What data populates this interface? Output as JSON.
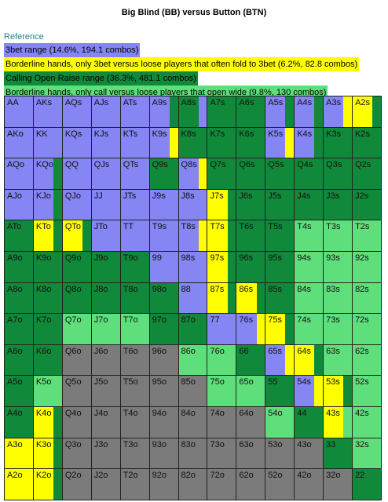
{
  "title": "Big Blind (BB) versus Button (BTN)",
  "reference": {
    "heading": "Reference",
    "items": [
      {
        "text": "3bet range (14.6%, 194.1 combos)",
        "fill": "P"
      },
      {
        "text": "Borderline hands, only 3bet versus loose players that often fold to 3bet (6.2%, 82.8 combos)",
        "fill": "Y"
      },
      {
        "text": "Calling Open Raise range (36.3%, 481.1 combos)",
        "fill": "G"
      },
      {
        "text": "Borderline hands, only call versus loose players that open wide (9.8%, 130 combos)",
        "fill": "L"
      }
    ]
  },
  "palette": {
    "P": "#8585f3",
    "Y": "#ffff00",
    "G": "#10893a",
    "L": "#5fdf7b",
    "X": "#7b7b7b"
  },
  "grid": {
    "rows": [
      [
        [
          "AA",
          "P"
        ],
        [
          "AKs",
          "P"
        ],
        [
          "AQs",
          "P"
        ],
        [
          "AJs",
          "P"
        ],
        [
          "ATs",
          "P"
        ],
        [
          "A9s",
          "P",
          "G"
        ],
        [
          "A8s",
          "G",
          "P"
        ],
        [
          "A7s",
          "G"
        ],
        [
          "A6s",
          "G"
        ],
        [
          "A5s",
          "P",
          "G"
        ],
        [
          "A4s",
          "P",
          "G"
        ],
        [
          "A3s",
          "P",
          "Y"
        ],
        [
          "A2s",
          "Y",
          "G"
        ]
      ],
      [
        [
          "AKo",
          "P"
        ],
        [
          "KK",
          "P"
        ],
        [
          "KQs",
          "P"
        ],
        [
          "KJs",
          "P"
        ],
        [
          "KTs",
          "P"
        ],
        [
          "K9s",
          "P",
          "Y"
        ],
        [
          "K8s",
          "G"
        ],
        [
          "K7s",
          "G"
        ],
        [
          "K6s",
          "G"
        ],
        [
          "K5s",
          "P",
          "Y"
        ],
        [
          "K4s",
          "P",
          "G"
        ],
        [
          "K3s",
          "G"
        ],
        [
          "K2s",
          "G"
        ]
      ],
      [
        [
          "AQo",
          "P"
        ],
        [
          "KQo",
          "P",
          "G"
        ],
        [
          "QQ",
          "P"
        ],
        [
          "QJs",
          "P"
        ],
        [
          "QTs",
          "P"
        ],
        [
          "Q9s",
          "G"
        ],
        [
          "Q8s",
          "P",
          "Y"
        ],
        [
          "Q7s",
          "G"
        ],
        [
          "Q6s",
          "G"
        ],
        [
          "Q5s",
          "G"
        ],
        [
          "Q4s",
          "G"
        ],
        [
          "Q3s",
          "G"
        ],
        [
          "Q2s",
          "G"
        ]
      ],
      [
        [
          "AJo",
          "P"
        ],
        [
          "KJo",
          "P",
          "G"
        ],
        [
          "QJo",
          "P"
        ],
        [
          "JJ",
          "P"
        ],
        [
          "JTs",
          "P"
        ],
        [
          "J9s",
          "P"
        ],
        [
          "J8s",
          "P"
        ],
        [
          "J7s",
          "Y",
          "G"
        ],
        [
          "J6s",
          "G"
        ],
        [
          "J5s",
          "G"
        ],
        [
          "J4s",
          "G"
        ],
        [
          "J3s",
          "G"
        ],
        [
          "J2s",
          "G"
        ]
      ],
      [
        [
          "ATo",
          "G"
        ],
        [
          "KTo",
          "Y",
          "G"
        ],
        [
          "QTo",
          "Y",
          "G"
        ],
        [
          "JTo",
          "P"
        ],
        [
          "TT",
          "P"
        ],
        [
          "T9s",
          "P"
        ],
        [
          "T8s",
          "P",
          "Y"
        ],
        [
          "T7s",
          "Y",
          "G"
        ],
        [
          "T6s",
          "G"
        ],
        [
          "T5s",
          "G"
        ],
        [
          "T4s",
          "L"
        ],
        [
          "T3s",
          "L"
        ],
        [
          "T2s",
          "L"
        ]
      ],
      [
        [
          "A9o",
          "G"
        ],
        [
          "K9o",
          "G"
        ],
        [
          "Q9o",
          "G"
        ],
        [
          "J9o",
          "G"
        ],
        [
          "T9o",
          "G"
        ],
        [
          "99",
          "P"
        ],
        [
          "98s",
          "P"
        ],
        [
          "97s",
          "Y",
          "G"
        ],
        [
          "96s",
          "G"
        ],
        [
          "95s",
          "G"
        ],
        [
          "94s",
          "L"
        ],
        [
          "93s",
          "L"
        ],
        [
          "92s",
          "L"
        ]
      ],
      [
        [
          "A8o",
          "G"
        ],
        [
          "K8o",
          "G"
        ],
        [
          "Q8o",
          "G"
        ],
        [
          "J8o",
          "G"
        ],
        [
          "T8o",
          "G"
        ],
        [
          "98o",
          "G"
        ],
        [
          "88",
          "P"
        ],
        [
          "87s",
          "Y",
          "G"
        ],
        [
          "86s",
          "Y",
          "G"
        ],
        [
          "85s",
          "G"
        ],
        [
          "84s",
          "L"
        ],
        [
          "83s",
          "L"
        ],
        [
          "82s",
          "L"
        ]
      ],
      [
        [
          "A7o",
          "G"
        ],
        [
          "K7o",
          "G"
        ],
        [
          "Q7o",
          "L"
        ],
        [
          "J7o",
          "L"
        ],
        [
          "T7o",
          "L"
        ],
        [
          "97o",
          "G"
        ],
        [
          "87o",
          "G"
        ],
        [
          "77",
          "P"
        ],
        [
          "76s",
          "P",
          "Y"
        ],
        [
          "75s",
          "Y",
          "G"
        ],
        [
          "74s",
          "L"
        ],
        [
          "73s",
          "L"
        ],
        [
          "72s",
          "L"
        ]
      ],
      [
        [
          "A6o",
          "G"
        ],
        [
          "K6o",
          "G"
        ],
        [
          "Q6o",
          "X"
        ],
        [
          "J6o",
          "X"
        ],
        [
          "T6o",
          "X"
        ],
        [
          "96o",
          "X"
        ],
        [
          "86o",
          "L"
        ],
        [
          "76o",
          "L"
        ],
        [
          "66",
          "G"
        ],
        [
          "65s",
          "P",
          "Y"
        ],
        [
          "64s",
          "Y",
          "G"
        ],
        [
          "63s",
          "L"
        ],
        [
          "62s",
          "L"
        ]
      ],
      [
        [
          "A5o",
          "G"
        ],
        [
          "K5o",
          "L"
        ],
        [
          "Q5o",
          "X"
        ],
        [
          "J5o",
          "X"
        ],
        [
          "T5o",
          "X"
        ],
        [
          "95o",
          "X"
        ],
        [
          "85o",
          "X"
        ],
        [
          "75o",
          "L"
        ],
        [
          "65o",
          "L"
        ],
        [
          "55",
          "G"
        ],
        [
          "54s",
          "P",
          "Y"
        ],
        [
          "53s",
          "Y",
          "G"
        ],
        [
          "52s",
          "L"
        ]
      ],
      [
        [
          "A4o",
          "G"
        ],
        [
          "K4o",
          "Y",
          "G"
        ],
        [
          "Q4o",
          "X"
        ],
        [
          "J4o",
          "X"
        ],
        [
          "T4o",
          "X"
        ],
        [
          "94o",
          "X"
        ],
        [
          "84o",
          "X"
        ],
        [
          "74o",
          "X"
        ],
        [
          "64o",
          "X"
        ],
        [
          "54o",
          "L"
        ],
        [
          "44",
          "G"
        ],
        [
          "43s",
          "Y",
          "L"
        ],
        [
          "42s",
          "L"
        ]
      ],
      [
        [
          "A3o",
          "Y"
        ],
        [
          "K3o",
          "Y",
          "G"
        ],
        [
          "Q3o",
          "X"
        ],
        [
          "J3o",
          "X"
        ],
        [
          "T3o",
          "X"
        ],
        [
          "93o",
          "X"
        ],
        [
          "83o",
          "X"
        ],
        [
          "73o",
          "X"
        ],
        [
          "63o",
          "X"
        ],
        [
          "53o",
          "X"
        ],
        [
          "43o",
          "X"
        ],
        [
          "33",
          "G"
        ],
        [
          "32s",
          "L"
        ]
      ],
      [
        [
          "A2o",
          "Y"
        ],
        [
          "K2o",
          "Y",
          "G"
        ],
        [
          "Q2o",
          "X"
        ],
        [
          "J2o",
          "X"
        ],
        [
          "T2o",
          "X"
        ],
        [
          "92o",
          "X"
        ],
        [
          "82o",
          "X"
        ],
        [
          "72o",
          "X"
        ],
        [
          "62o",
          "X"
        ],
        [
          "52o",
          "X"
        ],
        [
          "42o",
          "X"
        ],
        [
          "32o",
          "X"
        ],
        [
          "22",
          "G"
        ]
      ]
    ]
  }
}
